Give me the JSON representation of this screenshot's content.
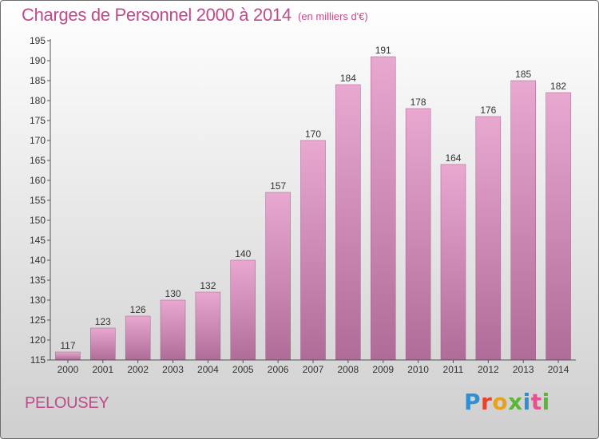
{
  "header": {
    "title": "Charges de Personnel 2000 à 2014",
    "subtitle": "(en milliers d'€)"
  },
  "footer": {
    "commune": "PELOUSEY",
    "logo_text": "Proxiti",
    "logo_colors": [
      "#2f8fd3",
      "#e8432b",
      "#e8a11d",
      "#5bb537",
      "#2f8fd3",
      "#e84f90",
      "#5bb537"
    ]
  },
  "colors": {
    "bar_top": "#e8a8d0",
    "bar_bottom": "#b06c98",
    "text": "#c04a8a",
    "axis": "#555555"
  },
  "chart_data": {
    "type": "bar",
    "title": "Charges de Personnel 2000 à 2014",
    "subtitle": "(en milliers d'€)",
    "categories": [
      "2000",
      "2001",
      "2002",
      "2003",
      "2004",
      "2005",
      "2006",
      "2007",
      "2008",
      "2009",
      "2010",
      "2011",
      "2012",
      "2013",
      "2014"
    ],
    "values": [
      117,
      123,
      126,
      130,
      132,
      140,
      157,
      170,
      184,
      191,
      178,
      164,
      176,
      185,
      182
    ],
    "ylim": [
      115,
      195
    ],
    "ytick_step": 5,
    "grid": false,
    "legend": "none"
  }
}
